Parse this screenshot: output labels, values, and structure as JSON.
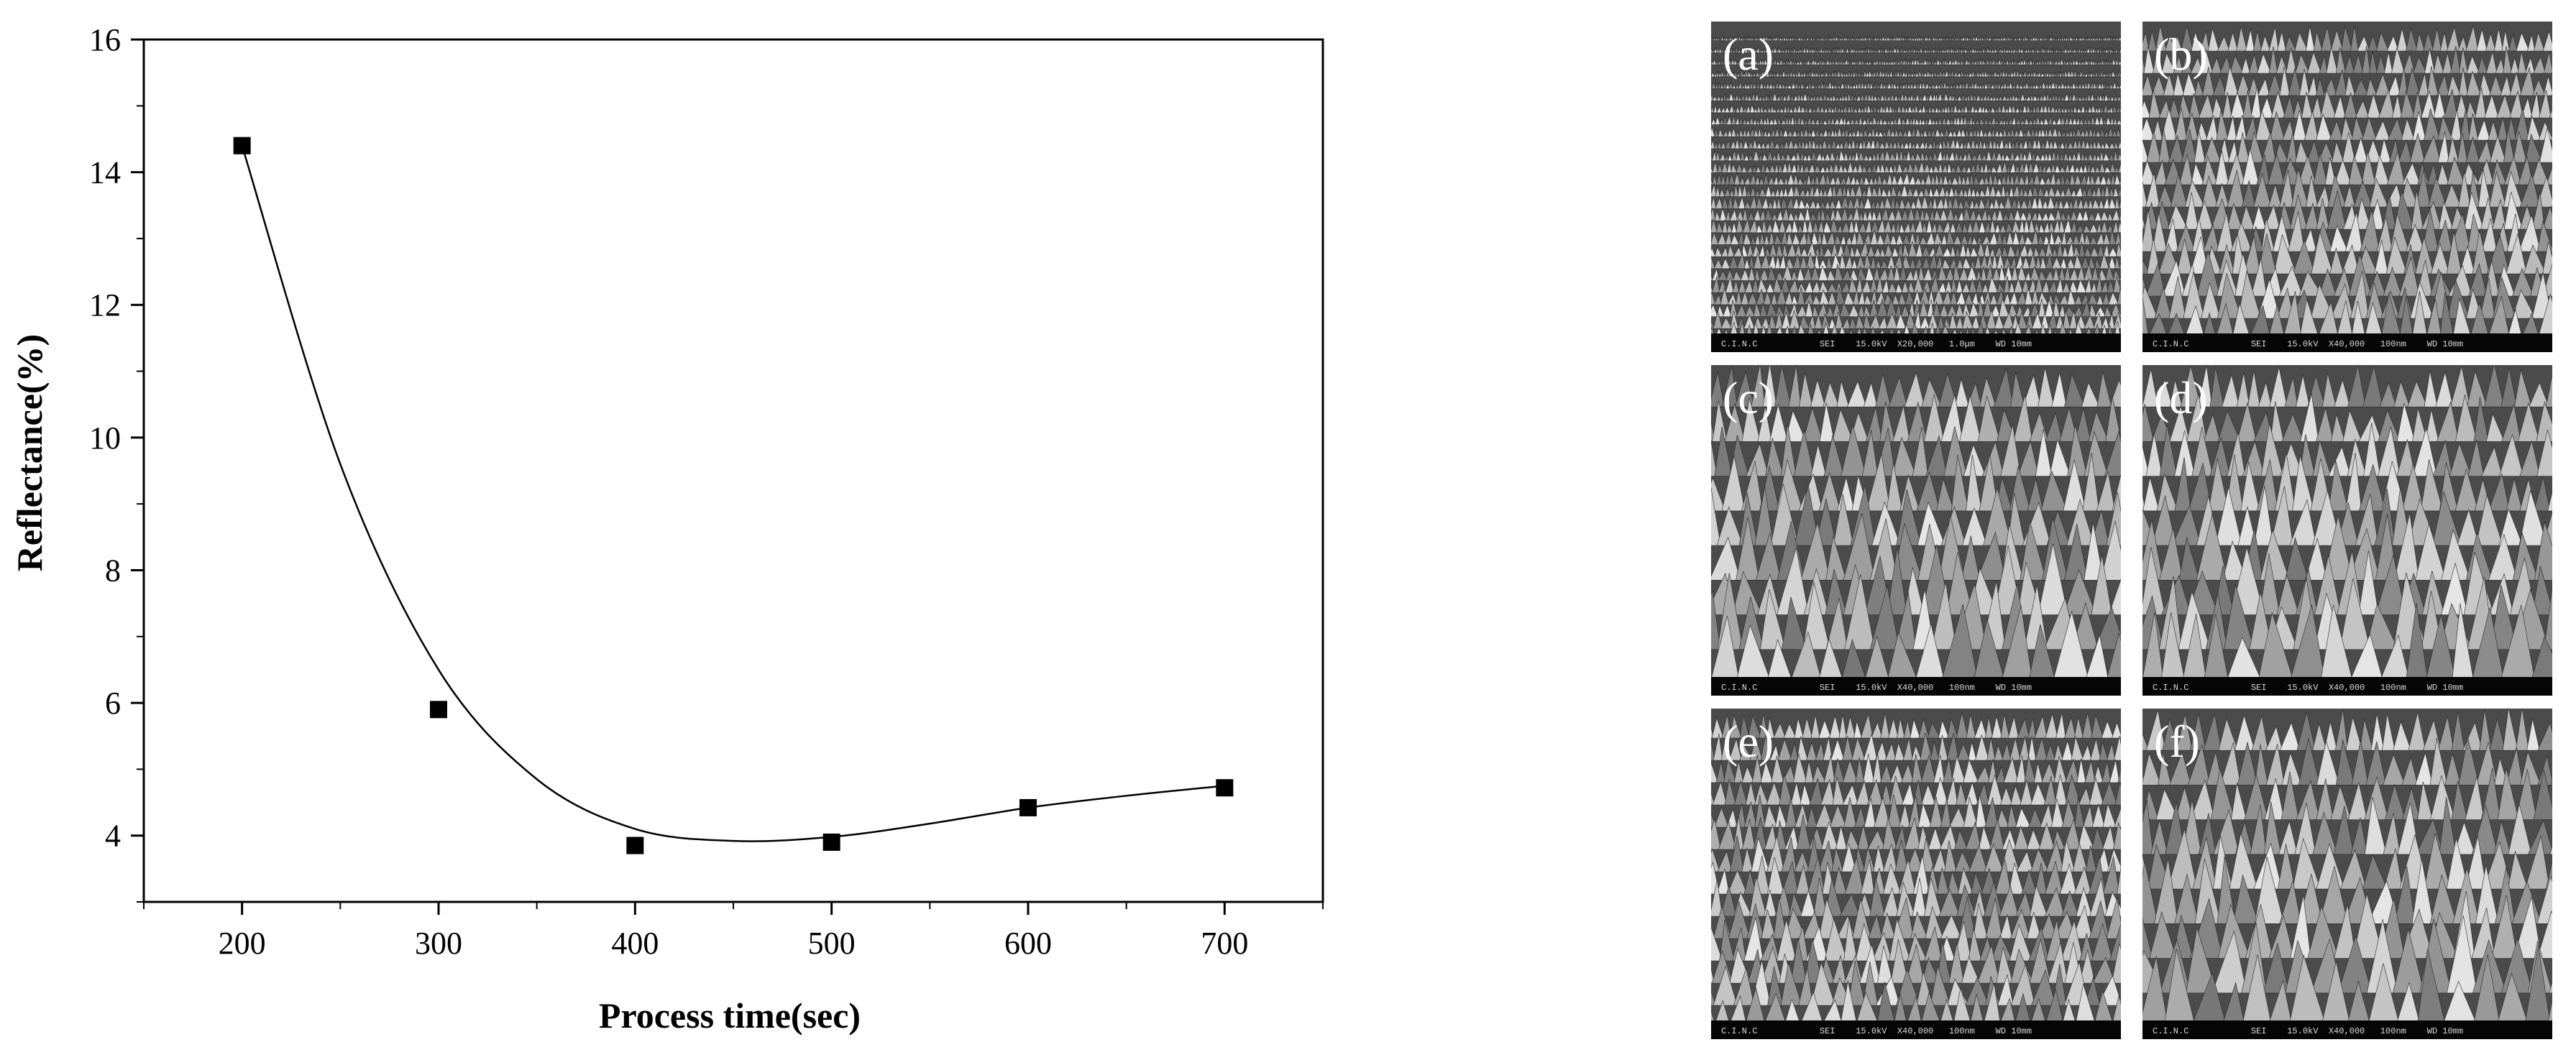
{
  "chart_data": {
    "type": "scatter",
    "xlabel": "Process time(sec)",
    "ylabel": "Reflectance(%)",
    "xlim": [
      150,
      750
    ],
    "ylim": [
      3,
      16
    ],
    "xticks": [
      200,
      300,
      400,
      500,
      600,
      700
    ],
    "yticks": [
      4,
      6,
      8,
      10,
      12,
      14,
      16
    ],
    "grid": false,
    "series": [
      {
        "x": [
          200,
          300,
          400,
          500,
          600,
          700
        ],
        "y": [
          14.4,
          5.9,
          3.85,
          3.9,
          4.42,
          4.72
        ],
        "marker": "square",
        "fit_curve": "smooth",
        "color": "#000000"
      }
    ]
  },
  "sem_panels": [
    {
      "label": "(a)",
      "footer": "C.I.N.C            SEI    15.0kV  X20,000   1.0μm    WD 10mm",
      "texture": "fine"
    },
    {
      "label": "(b)",
      "footer": "C.I.N.C            SEI    15.0kV  X40,000   100nm    WD 10mm",
      "texture": "medium"
    },
    {
      "label": "(c)",
      "footer": "C.I.N.C            SEI    15.0kV  X40,000   100nm    WD 10mm",
      "texture": "coarse"
    },
    {
      "label": "(d)",
      "footer": "C.I.N.C            SEI    15.0kV  X40,000   100nm    WD 10mm",
      "texture": "coarse"
    },
    {
      "label": "(e)",
      "footer": "C.I.N.C            SEI    15.0kV  X40,000   100nm    WD 10mm",
      "texture": "medium"
    },
    {
      "label": "(f)",
      "footer": "C.I.N.C            SEI    15.0kV  X40,000   100nm    WD 10mm",
      "texture": "coarse"
    }
  ]
}
